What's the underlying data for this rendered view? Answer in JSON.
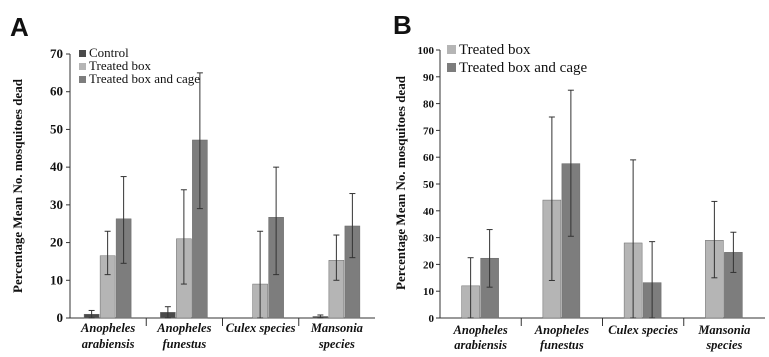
{
  "chart_data": [
    {
      "type": "bar",
      "panel_label": "A",
      "ylabel": "Percentage  Mean No. mosquitoes dead",
      "ylim": [
        0,
        70
      ],
      "yticks": [
        0,
        10,
        20,
        30,
        40,
        50,
        60,
        70
      ],
      "categories": [
        {
          "line1": "Anopheles",
          "line2": "arabiensis"
        },
        {
          "line1": "Anopheles",
          "line2": "funestus"
        },
        {
          "line1": "Culex species",
          "line2": ""
        },
        {
          "line1": "Mansonia",
          "line2": "species"
        }
      ],
      "legend_position": "top-left",
      "series": [
        {
          "name": "Control",
          "color": "#4a4a4a",
          "values": [
            1,
            1.5,
            0,
            0.4
          ],
          "error_upper": [
            2,
            3,
            null,
            0.8
          ],
          "error_lower": [
            0,
            0,
            null,
            0
          ]
        },
        {
          "name": "Treated box",
          "color": "#b5b5b5",
          "values": [
            16.5,
            21,
            9,
            15.3
          ],
          "error_upper": [
            23,
            34,
            23,
            22
          ],
          "error_lower": [
            11.5,
            9,
            0,
            10
          ]
        },
        {
          "name": "Treated box and cage",
          "color": "#7d7d7d",
          "values": [
            26.3,
            47.2,
            26.7,
            24.4
          ],
          "error_upper": [
            37.5,
            65,
            40,
            33
          ],
          "error_lower": [
            14.5,
            29,
            11.5,
            16
          ]
        }
      ]
    },
    {
      "type": "bar",
      "panel_label": "B",
      "ylabel": "Percentage  Mean No. mosquitoes dead",
      "ylim": [
        0,
        100
      ],
      "yticks": [
        0,
        10,
        20,
        30,
        40,
        50,
        60,
        70,
        80,
        90,
        100
      ],
      "categories": [
        {
          "line1": "Anopheles",
          "line2": "arabiensis"
        },
        {
          "line1": "Anopheles",
          "line2": "funestus"
        },
        {
          "line1": "Culex species",
          "line2": ""
        },
        {
          "line1": "Mansonia",
          "line2": "species"
        }
      ],
      "legend_position": "top-left",
      "series": [
        {
          "name": "Treated box",
          "color": "#b5b5b5",
          "values": [
            12,
            44,
            28,
            29
          ],
          "error_upper": [
            22.5,
            75,
            59,
            43.5
          ],
          "error_lower": [
            0,
            14,
            0,
            15
          ]
        },
        {
          "name": "Treated box and cage",
          "color": "#7d7d7d",
          "values": [
            22.3,
            57.6,
            13.2,
            24.5
          ],
          "error_upper": [
            33,
            85,
            28.5,
            32
          ],
          "error_lower": [
            11.5,
            30.5,
            0,
            17
          ]
        }
      ]
    }
  ]
}
